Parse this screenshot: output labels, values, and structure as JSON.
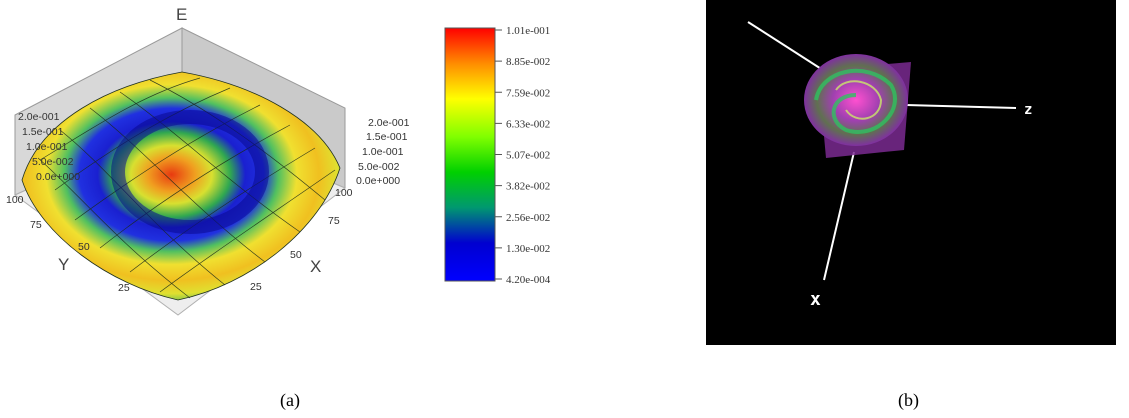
{
  "captions": {
    "a": "(a)",
    "b": "(b)"
  },
  "chart_data": [
    {
      "type": "surface3d",
      "axes": {
        "z_label": "E",
        "x_label": "X",
        "y_label": "Y",
        "z_ticks_left": [
          "2.0e-001",
          "1.5e-001",
          "1.0e-001",
          "5.0e-002",
          "0.0e+000"
        ],
        "z_ticks_right": [
          "2.0e-001",
          "1.5e-001",
          "1.0e-001",
          "5.0e-002",
          "0.0e+000"
        ],
        "x_ticks": [
          "25",
          "50",
          "75",
          "100"
        ],
        "y_ticks": [
          "100",
          "75",
          "50",
          "25"
        ],
        "x_range": [
          0,
          100
        ],
        "y_range": [
          0,
          100
        ],
        "z_range": [
          0,
          0.2
        ]
      },
      "colorbar": {
        "labels": [
          "1.01e-001",
          "8.85e-002",
          "7.59e-002",
          "6.33e-002",
          "5.07e-002",
          "3.82e-002",
          "2.56e-002",
          "1.30e-002",
          "4.20e-004"
        ],
        "min": 0.00042,
        "max": 0.101,
        "colors": [
          "#ff0000",
          "#ff8c00",
          "#ffff00",
          "#7fff00",
          "#00d000",
          "#00a080",
          "#0000e0",
          "#0000ff"
        ]
      }
    },
    {
      "type": "volume3d",
      "axes": {
        "labels": [
          "z",
          "x"
        ]
      },
      "background": "#000000"
    }
  ]
}
